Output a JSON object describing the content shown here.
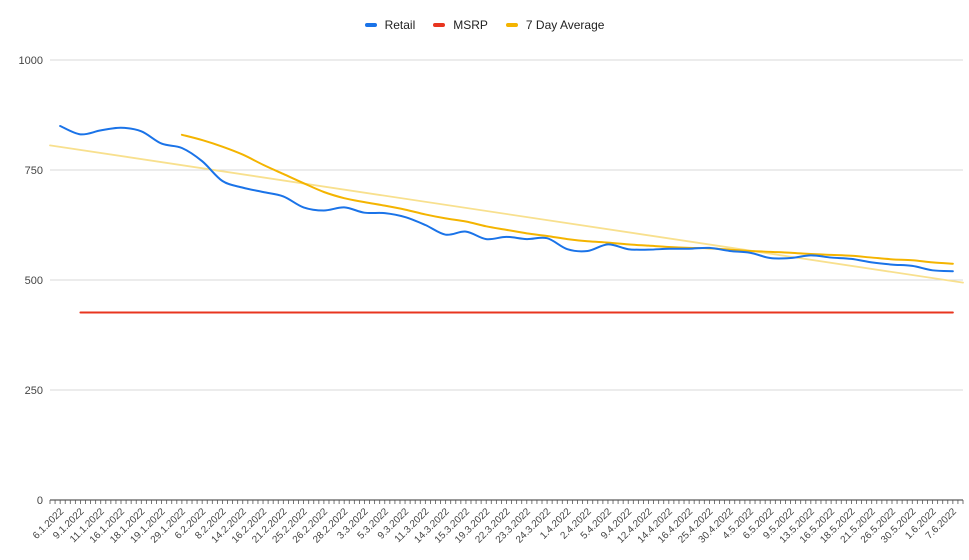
{
  "chart_data": {
    "type": "line",
    "title": "",
    "xlabel": "",
    "ylabel": "",
    "ylim": [
      0,
      1000
    ],
    "yticks": [
      "0",
      "250",
      "500",
      "750",
      "1000"
    ],
    "grid": true,
    "legend_position": "top-center",
    "legend": [
      {
        "name": "Retail",
        "color": "#1a73e8"
      },
      {
        "name": "MSRP",
        "color": "#e8351f"
      },
      {
        "name": "7 Day Average",
        "color": "#f4b400"
      }
    ],
    "x_tick_labels": [
      "6.1.2022",
      "9.1.2022",
      "11.1.2022",
      "16.1.2022",
      "18.1.2022",
      "19.1.2022",
      "29.1.2022",
      "6.2.2022",
      "8.2.2022",
      "14.2.2022",
      "16.2.2022",
      "21.2.2022",
      "25.2.2022",
      "26.2.2022",
      "28.2.2022",
      "3.3.2022",
      "5.3.2022",
      "9.3.2022",
      "11.3.2022",
      "14.3.2022",
      "15.3.2022",
      "19.3.2022",
      "22.3.2022",
      "23.3.2022",
      "24.3.2022",
      "1.4.2022",
      "2.4.2022",
      "5.4.2022",
      "9.4.2022",
      "12.4.2022",
      "14.4.2022",
      "16.4.2022",
      "25.4.2022",
      "30.4.2022",
      "4.5.2022",
      "6.5.2022",
      "9.5.2022",
      "13.5.2022",
      "16.5.2022",
      "18.5.2022",
      "21.5.2022",
      "26.5.2022",
      "30.5.2022",
      "1.6.2022",
      "7.6.2022"
    ],
    "series": [
      {
        "name": "Retail",
        "color": "#1a73e8",
        "points": [
          [
            0,
            850
          ],
          [
            1,
            831
          ],
          [
            2,
            840
          ],
          [
            3,
            846
          ],
          [
            4,
            838
          ],
          [
            5,
            810
          ],
          [
            6,
            800
          ],
          [
            7,
            770
          ],
          [
            8,
            725
          ],
          [
            9,
            710
          ],
          [
            10,
            700
          ],
          [
            11,
            690
          ],
          [
            12,
            665
          ],
          [
            13,
            658
          ],
          [
            14,
            665
          ],
          [
            15,
            653
          ],
          [
            16,
            652
          ],
          [
            17,
            643
          ],
          [
            18,
            625
          ],
          [
            19,
            603
          ],
          [
            20,
            610
          ],
          [
            21,
            593
          ],
          [
            22,
            598
          ],
          [
            23,
            593
          ],
          [
            24,
            595
          ],
          [
            25,
            570
          ],
          [
            26,
            566
          ],
          [
            27,
            581
          ],
          [
            28,
            570
          ],
          [
            29,
            569
          ],
          [
            30,
            571
          ],
          [
            31,
            571
          ],
          [
            32,
            573
          ],
          [
            33,
            566
          ],
          [
            34,
            562
          ],
          [
            35,
            550
          ],
          [
            36,
            550
          ],
          [
            37,
            556
          ],
          [
            38,
            551
          ],
          [
            39,
            548
          ],
          [
            40,
            540
          ],
          [
            41,
            535
          ],
          [
            42,
            532
          ],
          [
            43,
            522
          ],
          [
            44,
            520
          ]
        ]
      },
      {
        "name": "MSRP",
        "color": "#e8351f",
        "points": [
          [
            1,
            426
          ],
          [
            44,
            426
          ]
        ]
      },
      {
        "name": "7 Day Average",
        "color": "#f4b400",
        "points": [
          [
            6,
            830
          ],
          [
            7,
            818
          ],
          [
            8,
            803
          ],
          [
            9,
            785
          ],
          [
            10,
            762
          ],
          [
            11,
            741
          ],
          [
            12,
            720
          ],
          [
            13,
            700
          ],
          [
            14,
            686
          ],
          [
            15,
            677
          ],
          [
            16,
            669
          ],
          [
            17,
            660
          ],
          [
            18,
            649
          ],
          [
            19,
            640
          ],
          [
            20,
            633
          ],
          [
            21,
            622
          ],
          [
            22,
            614
          ],
          [
            23,
            606
          ],
          [
            24,
            600
          ],
          [
            25,
            593
          ],
          [
            26,
            588
          ],
          [
            27,
            585
          ],
          [
            28,
            581
          ],
          [
            29,
            578
          ],
          [
            30,
            575
          ],
          [
            31,
            573
          ],
          [
            32,
            572
          ],
          [
            33,
            569
          ],
          [
            34,
            566
          ],
          [
            35,
            564
          ],
          [
            36,
            562
          ],
          [
            37,
            559
          ],
          [
            38,
            557
          ],
          [
            39,
            555
          ],
          [
            40,
            551
          ],
          [
            41,
            547
          ],
          [
            42,
            545
          ],
          [
            43,
            540
          ],
          [
            44,
            537
          ]
        ]
      },
      {
        "name": "Trendline",
        "color": "#f8e08e",
        "points": [
          [
            -0.5,
            806
          ],
          [
            44.5,
            494
          ]
        ]
      }
    ]
  }
}
